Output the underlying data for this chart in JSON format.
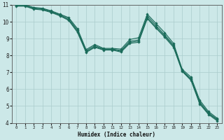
{
  "xlabel": "Humidex (Indice chaleur)",
  "ylabel": "",
  "bg_color": "#cce8e8",
  "grid_color": "#aacccc",
  "line_color": "#1a6b5a",
  "xlim": [
    -0.5,
    23.5
  ],
  "ylim": [
    4,
    11
  ],
  "xticks": [
    0,
    1,
    2,
    3,
    4,
    5,
    6,
    7,
    8,
    9,
    10,
    11,
    12,
    13,
    14,
    15,
    16,
    17,
    18,
    19,
    20,
    21,
    22,
    23
  ],
  "yticks": [
    4,
    5,
    6,
    7,
    8,
    9,
    10,
    11
  ],
  "series": [
    {
      "x": [
        0,
        1,
        2,
        3,
        4,
        5,
        6,
        7,
        8,
        9,
        10,
        11,
        12,
        13,
        14,
        15,
        16,
        17,
        18,
        19,
        20,
        21,
        22,
        23
      ],
      "y": [
        11.0,
        11.0,
        10.85,
        10.8,
        10.65,
        10.45,
        10.25,
        9.6,
        8.35,
        8.65,
        8.42,
        8.42,
        8.38,
        8.95,
        9.05,
        10.45,
        9.9,
        9.35,
        8.72,
        7.18,
        6.72,
        5.35,
        4.68,
        4.28
      ]
    },
    {
      "x": [
        0,
        1,
        2,
        3,
        4,
        5,
        6,
        7,
        8,
        9,
        10,
        11,
        12,
        13,
        14,
        15,
        16,
        17,
        18,
        19,
        20,
        21,
        22,
        23
      ],
      "y": [
        10.98,
        10.98,
        10.82,
        10.77,
        10.62,
        10.42,
        10.18,
        9.52,
        8.28,
        8.58,
        8.38,
        8.38,
        8.3,
        8.85,
        8.92,
        10.35,
        9.78,
        9.22,
        8.62,
        7.12,
        6.62,
        5.25,
        4.6,
        4.22
      ]
    },
    {
      "x": [
        0,
        1,
        2,
        3,
        4,
        5,
        6,
        7,
        8,
        9,
        10,
        11,
        12,
        13,
        14,
        15,
        16,
        17,
        18,
        19,
        20,
        21,
        22,
        23
      ],
      "y": [
        10.95,
        10.95,
        10.78,
        10.73,
        10.58,
        10.38,
        10.12,
        9.45,
        8.22,
        8.52,
        8.35,
        8.35,
        8.25,
        8.78,
        8.85,
        10.25,
        9.68,
        9.15,
        8.55,
        7.08,
        6.58,
        5.18,
        4.55,
        4.18
      ]
    },
    {
      "x": [
        0,
        1,
        2,
        3,
        4,
        5,
        6,
        7,
        8,
        9,
        10,
        11,
        12,
        13,
        14,
        15,
        16,
        17,
        18,
        19,
        20,
        21,
        22,
        23
      ],
      "y": [
        10.92,
        10.92,
        10.75,
        10.7,
        10.55,
        10.35,
        10.08,
        9.38,
        8.18,
        8.48,
        8.32,
        8.32,
        8.2,
        8.72,
        8.78,
        10.18,
        9.62,
        9.08,
        8.48,
        7.05,
        6.52,
        5.12,
        4.5,
        4.12
      ]
    }
  ]
}
